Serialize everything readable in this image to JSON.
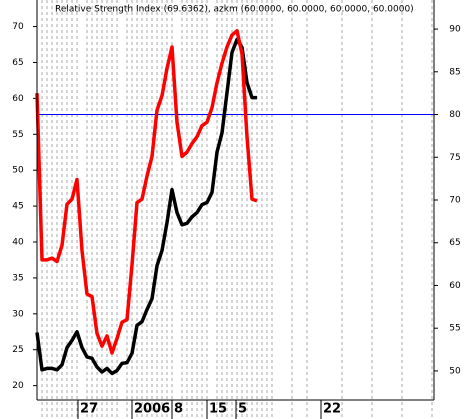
{
  "chart_data": {
    "type": "line",
    "title": "Relative Strength Index (69.6362), azkm (60.0000, 60.0000, 60.0000, 60.0000)",
    "x": [
      0,
      1,
      2,
      3,
      4,
      5,
      6,
      7,
      8,
      9,
      10,
      11,
      12,
      13,
      14,
      15,
      16,
      17,
      18,
      19,
      20,
      21,
      22,
      23,
      24,
      25,
      26,
      27,
      28,
      29,
      30,
      31,
      32,
      33,
      34,
      35,
      36,
      37,
      38,
      39,
      40,
      41,
      42,
      43,
      44
    ],
    "series": [
      {
        "name": "azkm",
        "color": "#000000",
        "axis": "y",
        "values": [
          27.4,
          22.2,
          22.4,
          22.4,
          22.2,
          22.9,
          25.3,
          26.3,
          27.5,
          25.3,
          24.0,
          23.8,
          22.6,
          21.9,
          22.4,
          21.7,
          22.1,
          23.1,
          23.2,
          24.5,
          28.4,
          28.9,
          30.6,
          32.1,
          36.7,
          38.8,
          42.7,
          47.3,
          44.1,
          42.4,
          42.6,
          43.5,
          44.1,
          45.2,
          45.5,
          46.9,
          52.5,
          55.2,
          60.8,
          66.4,
          68.2,
          67.1,
          62.2,
          60.1,
          60.1
        ]
      },
      {
        "name": "Relative Strength Index",
        "color": "#ff0000",
        "axis": "y2",
        "values": [
          82.5,
          63.0,
          63.0,
          63.2,
          62.8,
          64.7,
          69.5,
          70.1,
          72.4,
          64.1,
          59.0,
          58.7,
          54.4,
          52.9,
          54.1,
          52.1,
          53.8,
          55.7,
          56.0,
          62.4,
          69.7,
          70.1,
          72.8,
          75.1,
          80.5,
          82.2,
          85.4,
          87.9,
          79.1,
          75.1,
          75.6,
          76.6,
          77.4,
          78.7,
          79.1,
          80.8,
          83.7,
          86.0,
          87.9,
          89.3,
          89.8,
          87.1,
          77.4,
          70.1,
          69.9
        ]
      }
    ],
    "hline": {
      "value": 80,
      "axis": "y2",
      "color": "#0000ff"
    },
    "xlim": [
      0,
      79.4
    ],
    "xticks": [
      {
        "value": 8.2,
        "label": "27"
      },
      {
        "value": 19,
        "label": "2006"
      },
      {
        "value": 27,
        "label": "8"
      },
      {
        "value": 34,
        "label": "15"
      },
      {
        "value": 39.8,
        "label": "5"
      },
      {
        "value": 56.8,
        "label": "22"
      }
    ],
    "xgrid": [
      1,
      2,
      3,
      4,
      5,
      6,
      7,
      8,
      10,
      11,
      12,
      13,
      14,
      15,
      16,
      18,
      19,
      20,
      21,
      22,
      23,
      24,
      25,
      26,
      27,
      29,
      30,
      31,
      32,
      33,
      34,
      36,
      37,
      38,
      39,
      40,
      41,
      42,
      43,
      44,
      45,
      46,
      47,
      51,
      54,
      61,
      67,
      73,
      79
    ],
    "ylim": [
      18,
      73.7
    ],
    "yticks": [
      20,
      25,
      30,
      35,
      40,
      45,
      50,
      55,
      60,
      65,
      70
    ],
    "y2lim": [
      46.6,
      93.4
    ],
    "y2ticks": [
      50,
      55,
      60,
      65,
      70,
      75,
      80,
      85,
      90
    ]
  }
}
